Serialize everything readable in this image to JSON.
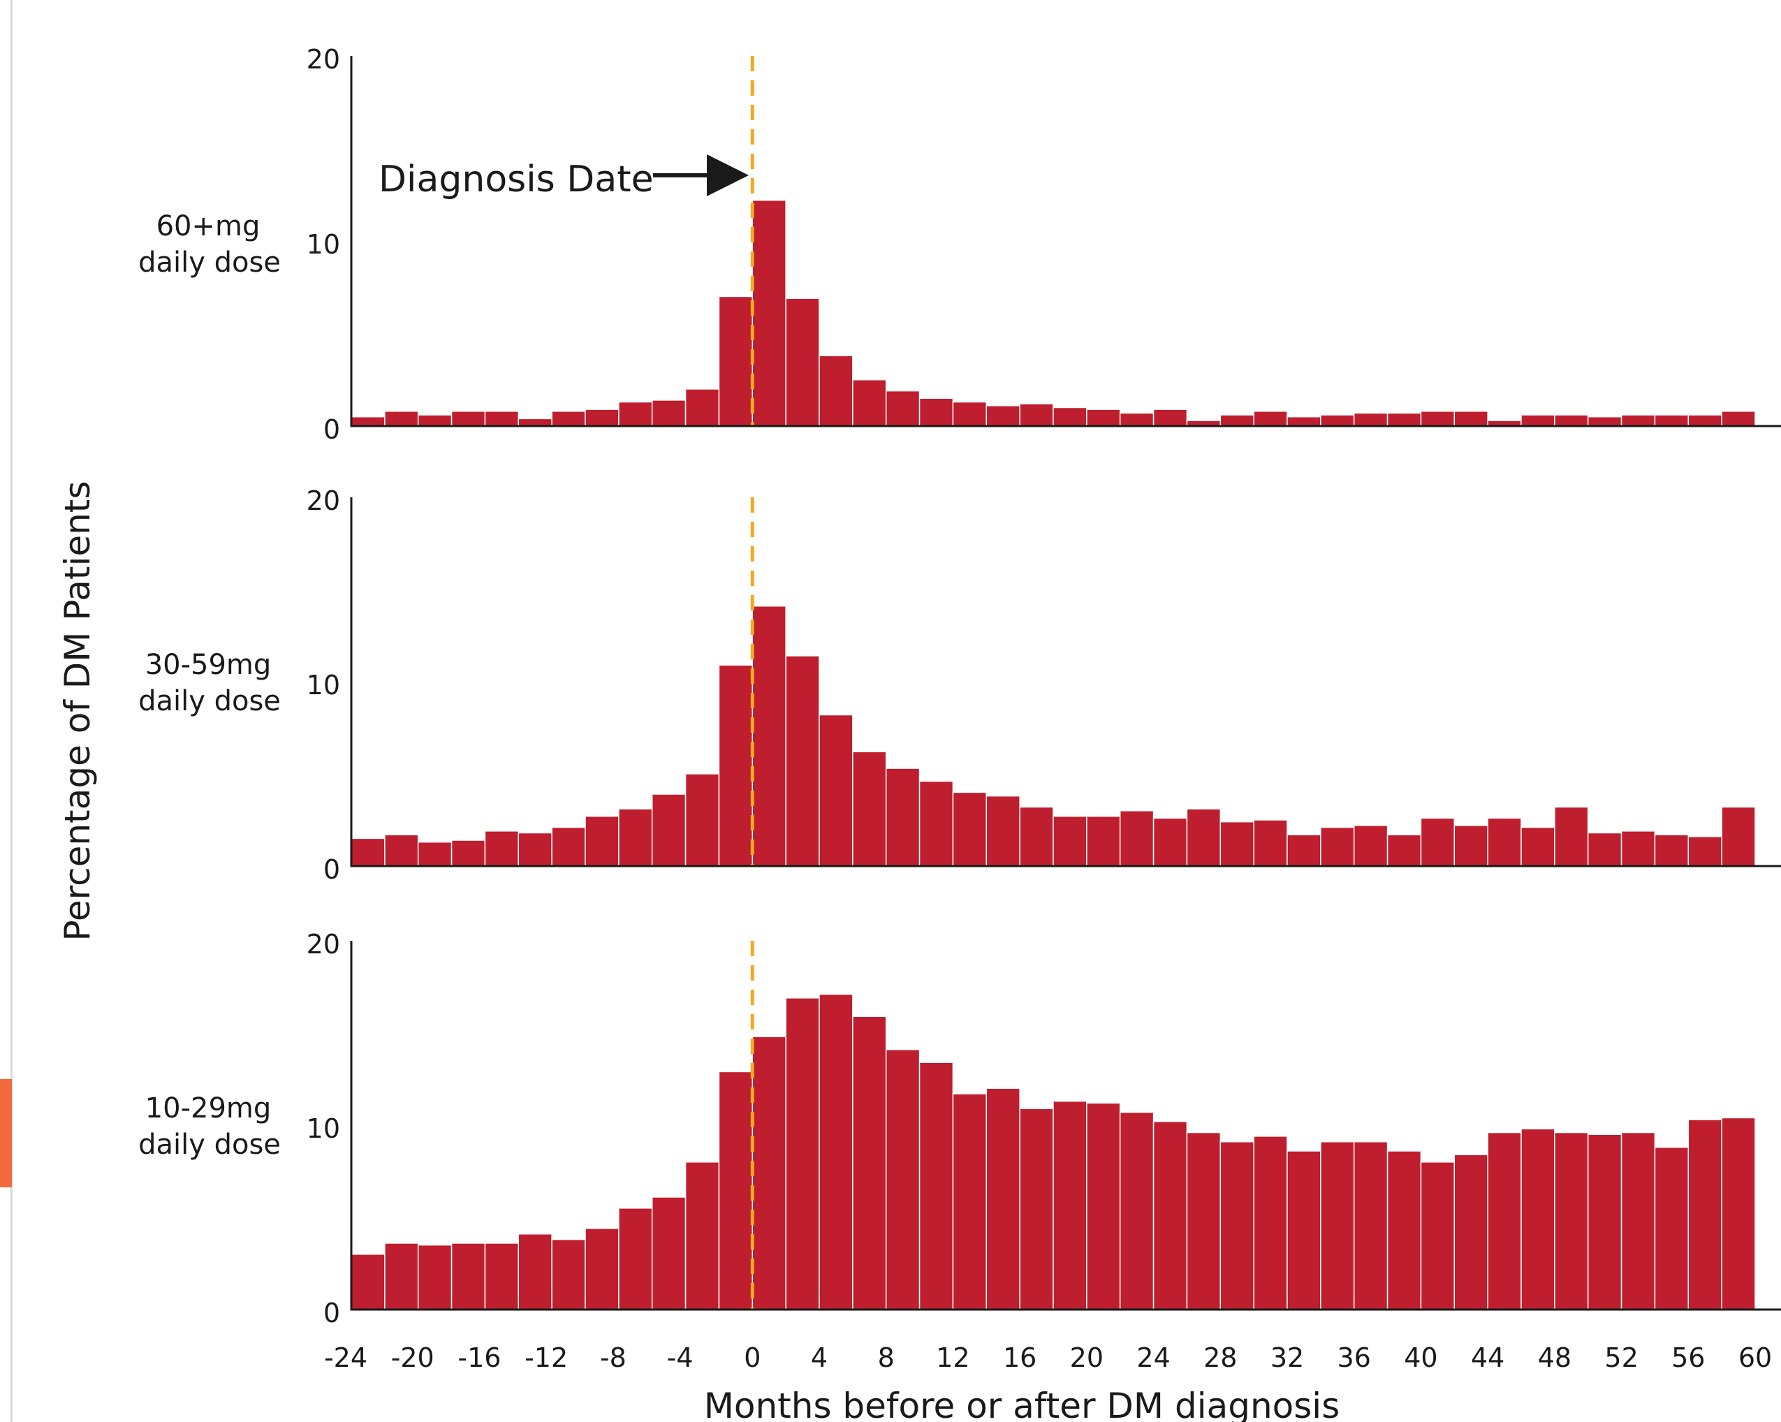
{
  "colors": {
    "bar": "#be1e2d",
    "bar_border": "#ffffff",
    "diagnosis_line": "#f5a91c",
    "axis": "#1a1a1a",
    "left_rule": "#d9d9d9",
    "left_accent": "#f26a3d"
  },
  "chart_data": {
    "type": "bar",
    "xlabel": "Months before or after DM diagnosis",
    "ylabel": "Percentage of DM Patients",
    "annotation": "Diagnosis Date",
    "annotation_x": 0,
    "x_ticks": [
      -24,
      -20,
      -16,
      -12,
      -8,
      -4,
      0,
      4,
      8,
      12,
      16,
      20,
      24,
      28,
      32,
      36,
      40,
      44,
      48,
      52,
      56,
      60
    ],
    "bin_starts": [
      -24,
      -22,
      -20,
      -18,
      -16,
      -14,
      -12,
      -10,
      -8,
      -6,
      -4,
      -2,
      0,
      2,
      4,
      6,
      8,
      10,
      12,
      14,
      16,
      18,
      20,
      22,
      24,
      26,
      28,
      30,
      32,
      34,
      36,
      38,
      40,
      42,
      44,
      46,
      48,
      50,
      52,
      54,
      56,
      58
    ],
    "bin_width": 2,
    "xlim": [
      -24,
      60
    ],
    "ylim": [
      0,
      20
    ],
    "y_ticks": [
      0,
      10,
      20
    ],
    "panels": [
      {
        "label_line1": "60+mg",
        "label_line2": "daily dose",
        "values": [
          0.5,
          0.8,
          0.6,
          0.8,
          0.8,
          0.4,
          0.8,
          0.9,
          1.3,
          1.4,
          2.0,
          7.0,
          12.2,
          6.9,
          3.8,
          2.5,
          1.9,
          1.5,
          1.3,
          1.1,
          1.2,
          1.0,
          0.9,
          0.7,
          0.9,
          0.3,
          0.6,
          0.8,
          0.5,
          0.6,
          0.7,
          0.7,
          0.8,
          0.8,
          0.3,
          0.6,
          0.6,
          0.5,
          0.6,
          0.6,
          0.6,
          0.8
        ]
      },
      {
        "label_line1": "30-59mg",
        "label_line2": "daily dose",
        "values": [
          1.5,
          1.7,
          1.3,
          1.4,
          1.9,
          1.8,
          2.1,
          2.7,
          3.1,
          3.9,
          5.0,
          10.9,
          14.1,
          11.4,
          8.2,
          6.2,
          5.3,
          4.6,
          4.0,
          3.8,
          3.2,
          2.7,
          2.7,
          3.0,
          2.6,
          3.1,
          2.4,
          2.5,
          1.7,
          2.1,
          2.2,
          1.7,
          2.6,
          2.2,
          2.6,
          2.1,
          3.2,
          1.8,
          1.9,
          1.7,
          1.6,
          3.2
        ]
      },
      {
        "label_line1": "10-29mg",
        "label_line2": "daily dose",
        "values": [
          3.0,
          3.6,
          3.5,
          3.6,
          3.6,
          4.1,
          3.8,
          4.4,
          5.5,
          6.1,
          8.0,
          12.9,
          14.8,
          16.9,
          17.1,
          15.9,
          14.1,
          13.4,
          11.7,
          12.0,
          10.9,
          11.3,
          11.2,
          10.7,
          10.2,
          9.6,
          9.1,
          9.4,
          8.6,
          9.1,
          9.1,
          8.6,
          8.0,
          8.4,
          9.6,
          9.8,
          9.6,
          9.5,
          9.6,
          8.8,
          10.3,
          10.4
        ]
      }
    ]
  }
}
